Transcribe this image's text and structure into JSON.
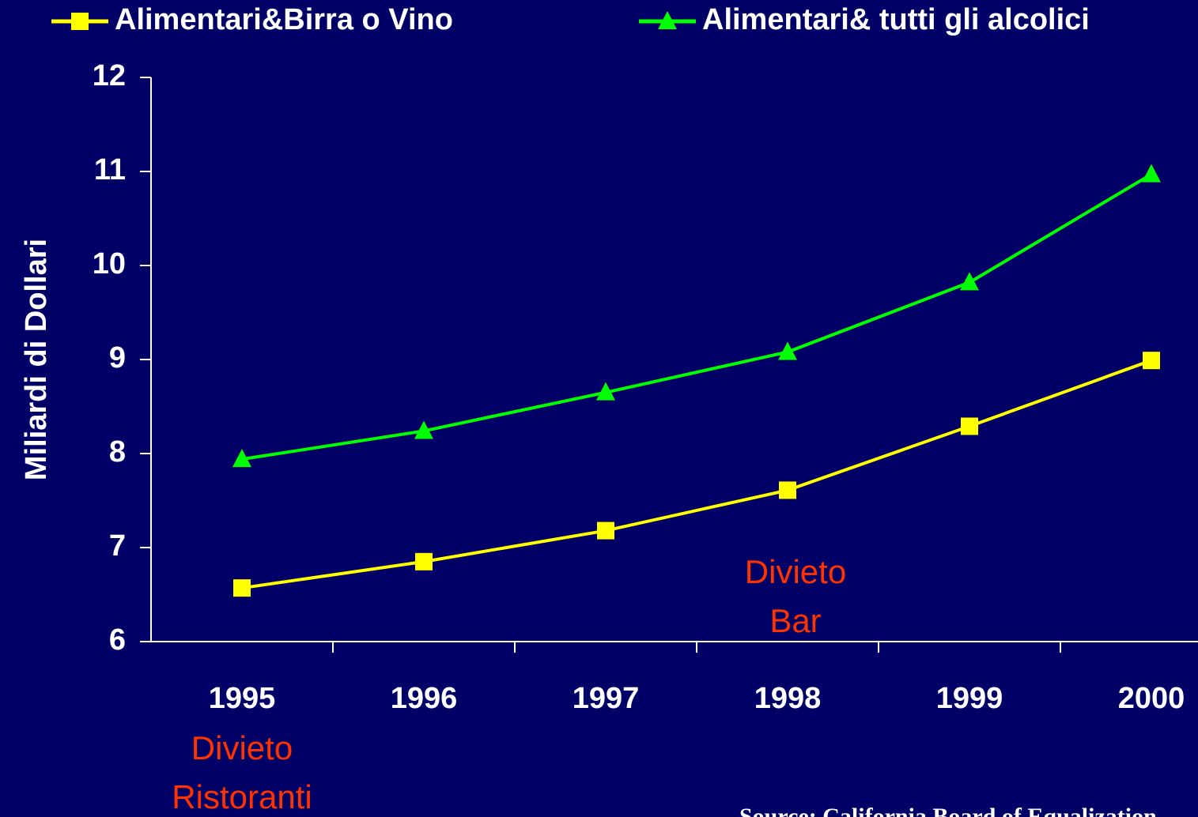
{
  "chart_data": {
    "type": "line",
    "y_label": "Miliardi di Dollari",
    "categories": [
      "1995",
      "1996",
      "1997",
      "1998",
      "1999",
      "2000"
    ],
    "series": [
      {
        "name": "Alimentari&Birra o Vino",
        "color": "#ffff00",
        "marker": "square",
        "values": [
          6.57,
          6.85,
          7.18,
          7.61,
          8.29,
          8.99
        ]
      },
      {
        "name": "Alimentari& tutti gli alcolici",
        "color": "#00ff00",
        "marker": "triangle",
        "values": [
          7.94,
          8.24,
          8.65,
          9.08,
          9.82,
          10.97
        ]
      }
    ],
    "ylim": [
      6,
      12
    ],
    "yticks": [
      6,
      7,
      8,
      9,
      10,
      11,
      12
    ],
    "annotations": [
      {
        "lines": [
          "Divieto",
          "Ristoranti"
        ]
      },
      {
        "lines": [
          "Divieto",
          "Bar"
        ]
      }
    ],
    "source": "Source: California Board of Equalization"
  }
}
